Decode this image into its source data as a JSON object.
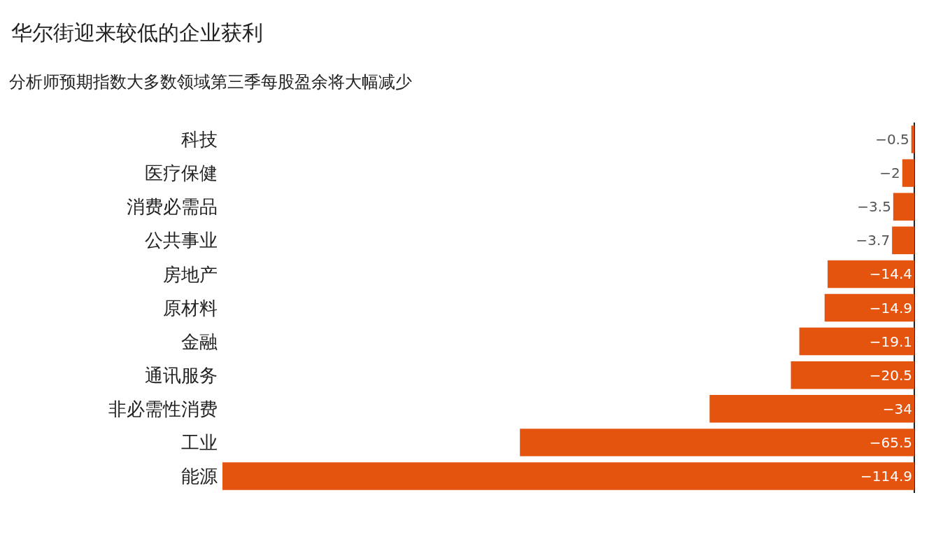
{
  "chart_data": {
    "type": "bar",
    "orientation": "horizontal",
    "title": "华尔街迎来较低的企业获利",
    "subtitle": "分析师预期指数大多数领域第三季每股盈余将大幅减少",
    "categories": [
      "科技",
      "医疗保健",
      "消费必需品",
      "公共事业",
      "房地产",
      "原材料",
      "金融",
      "通讯服务",
      "非必需性消费",
      "工业",
      "能源"
    ],
    "values": [
      -0.5,
      -2,
      -3.5,
      -3.7,
      -14.4,
      -14.9,
      -19.1,
      -20.5,
      -34,
      -65.5,
      -114.9
    ],
    "color": "#e5540f",
    "data_labels": true
  }
}
